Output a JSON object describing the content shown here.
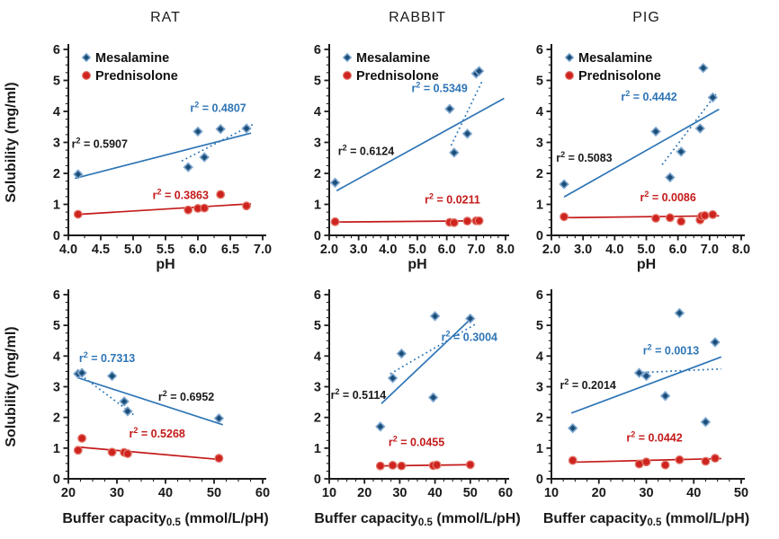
{
  "figure": {
    "ylabel": "Solubility (mg/ml)",
    "legend": [
      {
        "name": "Mesalamine",
        "marker": "diamond"
      },
      {
        "name": "Prednisolone",
        "marker": "circle"
      }
    ],
    "r2_notation": {
      "base": "r",
      "sup": "2",
      "equals": " = "
    },
    "palette": {
      "mesalamine": {
        "fill": "#1B4E79",
        "stroke": "#7EA6CE",
        "line": "#2E75B6"
      },
      "prednisolone": {
        "fill": "#CE231E",
        "stroke": "#E2776B",
        "line": "#C41A1A"
      }
    },
    "colors": {
      "axis": "#1A1A1A",
      "dark_text": "#1A1A1A",
      "blue_text": "#2E75B6",
      "red_text": "#C41A1A",
      "background": "#FFFFFF"
    }
  },
  "chart_data": [
    {
      "type": "scatter",
      "title": "RAT",
      "show_ylabel": true,
      "legend_visible": true,
      "xlabel": {
        "base": "pH"
      },
      "xlim": [
        4,
        7
      ],
      "xticks": [
        "4.0",
        "4.5",
        "5.0",
        "5.5",
        "6.0",
        "6.5",
        "7.0"
      ],
      "xminor": 0.25,
      "ylim": [
        0,
        6
      ],
      "yticks": [
        "0",
        "1",
        "2",
        "3",
        "4",
        "5",
        "6"
      ],
      "yminor": 0.25,
      "series": [
        {
          "name": "Mesalamine",
          "palette": "mesalamine",
          "marker": "diamond",
          "points": [
            [
              4.15,
              1.97
            ],
            [
              5.85,
              2.2
            ],
            [
              6.0,
              3.35
            ],
            [
              6.1,
              2.52
            ],
            [
              6.35,
              3.43
            ],
            [
              6.75,
              3.45
            ]
          ],
          "fits": [
            {
              "style": "solid",
              "r2": "0.5907",
              "r2_color": "dark",
              "line": [
                [
                  4.1,
                  1.84
                ],
                [
                  6.82,
                  3.3
                ]
              ],
              "r2_pos": [
                4.05,
                2.82
              ]
            },
            {
              "style": "dotted",
              "r2": "0.4807",
              "r2_color": "blue",
              "line": [
                [
                  5.75,
                  2.4
                ],
                [
                  6.85,
                  3.58
                ]
              ],
              "r2_pos": [
                5.88,
                3.98
              ]
            }
          ]
        },
        {
          "name": "Prednisolone",
          "palette": "prednisolone",
          "marker": "circle",
          "points": [
            [
              4.15,
              0.68
            ],
            [
              5.85,
              0.82
            ],
            [
              6.0,
              0.87
            ],
            [
              6.1,
              0.88
            ],
            [
              6.35,
              1.32
            ],
            [
              6.75,
              0.95
            ]
          ],
          "fits": [
            {
              "style": "solid",
              "r2": "0.3863",
              "r2_color": "red",
              "line": [
                [
                  4.1,
                  0.67
                ],
                [
                  6.82,
                  1.02
                ]
              ],
              "r2_pos": [
                5.3,
                1.18
              ]
            }
          ]
        }
      ]
    },
    {
      "type": "scatter",
      "title": "RABBIT",
      "show_ylabel": false,
      "legend_visible": true,
      "xlabel": {
        "base": "pH"
      },
      "xlim": [
        2,
        8
      ],
      "xticks": [
        "2.0",
        "3.0",
        "4.0",
        "5.0",
        "6.0",
        "7.0",
        "8.0"
      ],
      "xminor": 0.25,
      "ylim": [
        0,
        6
      ],
      "yticks": [
        "0",
        "1",
        "2",
        "3",
        "4",
        "5",
        "6"
      ],
      "yminor": 0.25,
      "series": [
        {
          "name": "Mesalamine",
          "palette": "mesalamine",
          "marker": "diamond",
          "points": [
            [
              2.2,
              1.7
            ],
            [
              6.1,
              4.08
            ],
            [
              6.25,
              2.67
            ],
            [
              6.7,
              3.28
            ],
            [
              7.0,
              5.22
            ],
            [
              7.1,
              5.3
            ]
          ],
          "fits": [
            {
              "style": "solid",
              "r2": "0.6124",
              "r2_color": "dark",
              "line": [
                [
                  2.25,
                  1.44
                ],
                [
                  7.95,
                  4.42
                ]
              ],
              "r2_pos": [
                2.3,
                2.6
              ]
            },
            {
              "style": "dotted",
              "r2": "0.5349",
              "r2_color": "blue",
              "line": [
                [
                  6.15,
                  2.9
                ],
                [
                  7.2,
                  4.97
                ]
              ],
              "r2_pos": [
                4.8,
                4.62
              ]
            }
          ]
        },
        {
          "name": "Prednisolone",
          "palette": "prednisolone",
          "marker": "circle",
          "points": [
            [
              2.2,
              0.44
            ],
            [
              6.1,
              0.42
            ],
            [
              6.25,
              0.41
            ],
            [
              6.7,
              0.46
            ],
            [
              7.0,
              0.47
            ],
            [
              7.1,
              0.47
            ]
          ],
          "fits": [
            {
              "style": "solid",
              "r2": "0.0211",
              "r2_color": "red",
              "line": [
                [
                  2.2,
                  0.43
                ],
                [
                  7.2,
                  0.47
                ]
              ],
              "r2_pos": [
                5.25,
                1.03
              ]
            }
          ]
        }
      ]
    },
    {
      "type": "scatter",
      "title": "PIG",
      "show_ylabel": false,
      "legend_visible": true,
      "xlabel": {
        "base": "pH"
      },
      "xlim": [
        2,
        8
      ],
      "xticks": [
        "2.0",
        "3.0",
        "4.0",
        "5.0",
        "6.0",
        "7.0",
        "8.0"
      ],
      "xminor": 0.25,
      "ylim": [
        0,
        6
      ],
      "yticks": [
        "0",
        "1",
        "2",
        "3",
        "4",
        "5",
        "6"
      ],
      "yminor": 0.25,
      "series": [
        {
          "name": "Mesalamine",
          "palette": "mesalamine",
          "marker": "diamond",
          "points": [
            [
              2.4,
              1.65
            ],
            [
              5.3,
              3.35
            ],
            [
              5.75,
              1.87
            ],
            [
              6.1,
              2.7
            ],
            [
              6.7,
              3.45
            ],
            [
              6.8,
              5.4
            ],
            [
              7.1,
              4.45
            ]
          ],
          "fits": [
            {
              "style": "solid",
              "r2": "0.5083",
              "r2_color": "dark",
              "line": [
                [
                  2.4,
                  1.24
                ],
                [
                  7.3,
                  4.07
                ]
              ],
              "r2_pos": [
                2.15,
                2.38
              ]
            },
            {
              "style": "dotted",
              "r2": "0.4442",
              "r2_color": "blue",
              "line": [
                [
                  5.5,
                  2.28
                ],
                [
                  7.2,
                  4.55
                ]
              ],
              "r2_pos": [
                4.2,
                4.35
              ]
            }
          ]
        },
        {
          "name": "Prednisolone",
          "palette": "prednisolone",
          "marker": "circle",
          "points": [
            [
              2.4,
              0.6
            ],
            [
              5.3,
              0.55
            ],
            [
              5.75,
              0.57
            ],
            [
              6.1,
              0.45
            ],
            [
              6.7,
              0.5
            ],
            [
              6.75,
              0.62
            ],
            [
              6.85,
              0.64
            ],
            [
              7.1,
              0.67
            ]
          ],
          "fits": [
            {
              "style": "solid",
              "r2": "0.0086",
              "r2_color": "red",
              "line": [
                [
                  2.35,
                  0.57
                ],
                [
                  7.3,
                  0.63
                ]
              ],
              "r2_pos": [
                4.8,
                1.1
              ]
            }
          ]
        }
      ]
    },
    {
      "type": "scatter",
      "title": "",
      "show_ylabel": true,
      "legend_visible": false,
      "xlabel": {
        "base": "Buffer capacity",
        "sub": "0.5",
        "rest": " (mmol/L/pH)"
      },
      "xlim": [
        20,
        60
      ],
      "xticks": [
        "20",
        "30",
        "40",
        "50",
        "60"
      ],
      "xminor": 2.5,
      "ylim": [
        0,
        6
      ],
      "yticks": [
        "0",
        "1",
        "2",
        "3",
        "4",
        "5",
        "6"
      ],
      "yminor": 0.25,
      "series": [
        {
          "name": "Mesalamine",
          "palette": "mesalamine",
          "marker": "diamond",
          "points": [
            [
              22,
              3.42
            ],
            [
              22.8,
              3.45
            ],
            [
              29,
              3.35
            ],
            [
              31.5,
              2.52
            ],
            [
              32.2,
              2.2
            ],
            [
              51,
              1.97
            ]
          ],
          "fits": [
            {
              "style": "solid",
              "r2": "0.6952",
              "r2_color": "dark",
              "line": [
                [
                  21.8,
                  3.3
                ],
                [
                  51.8,
                  1.76
                ]
              ],
              "r2_pos": [
                38.5,
                2.55
              ]
            },
            {
              "style": "dotted",
              "r2": "0.7313",
              "r2_color": "blue",
              "line": [
                [
                  21.8,
                  3.47
                ],
                [
                  33.5,
                  2.08
                ]
              ],
              "r2_pos": [
                22.2,
                3.8
              ]
            }
          ]
        },
        {
          "name": "Prednisolone",
          "palette": "prednisolone",
          "marker": "circle",
          "points": [
            [
              22,
              0.93
            ],
            [
              22.8,
              1.32
            ],
            [
              29,
              0.87
            ],
            [
              31.5,
              0.86
            ],
            [
              32.2,
              0.82
            ],
            [
              51,
              0.67
            ]
          ],
          "fits": [
            {
              "style": "solid",
              "r2": "0.5268",
              "r2_color": "red",
              "line": [
                [
                  21.8,
                  1.04
                ],
                [
                  51.8,
                  0.62
                ]
              ],
              "r2_pos": [
                32.5,
                1.34
              ]
            }
          ]
        }
      ]
    },
    {
      "type": "scatter",
      "title": "",
      "show_ylabel": false,
      "legend_visible": false,
      "xlabel": {
        "base": "Buffer capacity",
        "sub": "0.5",
        "rest": " (mmol/L/pH)"
      },
      "xlim": [
        10,
        60
      ],
      "xticks": [
        "10",
        "20",
        "30",
        "40",
        "50",
        "60"
      ],
      "xminor": 2.5,
      "ylim": [
        0,
        6
      ],
      "yticks": [
        "0",
        "1",
        "2",
        "3",
        "4",
        "5",
        "6"
      ],
      "yminor": 0.25,
      "series": [
        {
          "name": "Mesalamine",
          "palette": "mesalamine",
          "marker": "diamond",
          "points": [
            [
              24.5,
              1.7
            ],
            [
              28,
              3.28
            ],
            [
              30.5,
              4.08
            ],
            [
              39.5,
              2.65
            ],
            [
              40,
              5.3
            ],
            [
              50,
              5.22
            ]
          ],
          "fits": [
            {
              "style": "solid",
              "r2": "0.5114",
              "r2_color": "dark",
              "line": [
                [
                  24.8,
                  2.45
                ],
                [
                  50.6,
                  5.26
                ]
              ],
              "r2_pos": [
                10.4,
                2.6
              ]
            },
            {
              "style": "dotted",
              "r2": "0.3004",
              "r2_color": "blue",
              "line": [
                [
                  27.3,
                  3.42
                ],
                [
                  51.8,
                  5.06
                ]
              ],
              "r2_pos": [
                41.8,
                4.5
              ]
            }
          ]
        },
        {
          "name": "Prednisolone",
          "palette": "prednisolone",
          "marker": "circle",
          "points": [
            [
              24.5,
              0.42
            ],
            [
              28,
              0.44
            ],
            [
              30.5,
              0.42
            ],
            [
              39.5,
              0.43
            ],
            [
              40.5,
              0.45
            ],
            [
              50,
              0.46
            ]
          ],
          "fits": [
            {
              "style": "solid",
              "r2": "0.0455",
              "r2_color": "red",
              "line": [
                [
                  24.3,
                  0.42
                ],
                [
                  50.6,
                  0.46
                ]
              ],
              "r2_pos": [
                26.8,
                1.07
              ]
            }
          ]
        }
      ]
    },
    {
      "type": "scatter",
      "title": "",
      "show_ylabel": false,
      "legend_visible": false,
      "xlabel": {
        "base": "Buffer capacity",
        "sub": "0.5",
        "rest": " (mmol/L/pH)"
      },
      "xlim": [
        10,
        50
      ],
      "xticks": [
        "10",
        "20",
        "30",
        "40",
        "50"
      ],
      "xminor": 2.5,
      "ylim": [
        0,
        6
      ],
      "yticks": [
        "0",
        "1",
        "2",
        "3",
        "4",
        "5",
        "6"
      ],
      "yminor": 0.25,
      "series": [
        {
          "name": "Mesalamine",
          "palette": "mesalamine",
          "marker": "diamond",
          "points": [
            [
              14.5,
              1.65
            ],
            [
              28.5,
              3.45
            ],
            [
              30,
              3.35
            ],
            [
              34,
              2.7
            ],
            [
              37,
              5.4
            ],
            [
              42.5,
              1.85
            ],
            [
              44.5,
              4.45
            ]
          ],
          "fits": [
            {
              "style": "solid",
              "r2": "0.2014",
              "r2_color": "dark",
              "line": [
                [
                  14.2,
                  2.14
                ],
                [
                  45.8,
                  3.97
                ]
              ],
              "r2_pos": [
                11.8,
                2.92
              ]
            },
            {
              "style": "dotted",
              "r2": "0.0013",
              "r2_color": "blue",
              "line": [
                [
                  28.3,
                  3.46
                ],
                [
                  45.8,
                  3.58
                ]
              ],
              "r2_pos": [
                29.3,
                4.05
              ]
            }
          ]
        },
        {
          "name": "Prednisolone",
          "palette": "prednisolone",
          "marker": "circle",
          "points": [
            [
              14.5,
              0.6
            ],
            [
              28.5,
              0.48
            ],
            [
              30,
              0.55
            ],
            [
              34,
              0.45
            ],
            [
              37,
              0.62
            ],
            [
              42.5,
              0.57
            ],
            [
              44.5,
              0.67
            ]
          ],
          "fits": [
            {
              "style": "solid",
              "r2": "0.0442",
              "r2_color": "red",
              "line": [
                [
                  14.2,
                  0.54
                ],
                [
                  45.8,
                  0.66
                ]
              ],
              "r2_pos": [
                25.8,
                1.22
              ]
            }
          ]
        }
      ]
    }
  ]
}
